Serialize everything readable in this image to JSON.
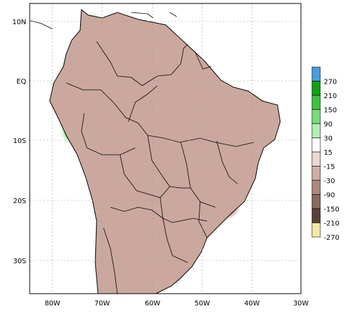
{
  "map": {
    "lat_labels": [
      "10N",
      "EQ",
      "10S",
      "20S",
      "30S"
    ],
    "lon_labels": [
      "80W",
      "70W",
      "60W",
      "50W",
      "40W",
      "30W"
    ]
  },
  "legend": {
    "bins": [
      {
        "label": "270",
        "color": "#4a9de0"
      },
      {
        "label": "210",
        "color": "#12a312"
      },
      {
        "label": "150",
        "color": "#3cc43c"
      },
      {
        "label": "90",
        "color": "#78dc78"
      },
      {
        "label": "30",
        "color": "#b2efb2"
      },
      {
        "label": "15",
        "color": "#ffffff"
      },
      {
        "label": "-15",
        "color": "#ecd8d2"
      },
      {
        "label": "-30",
        "color": "#cfaea4"
      },
      {
        "label": "-90",
        "color": "#ae8a7e"
      },
      {
        "label": "-150",
        "color": "#8a6a5e"
      },
      {
        "label": "-210",
        "color": "#5c4036"
      },
      {
        "label": "-270",
        "color": "#f3e9a6"
      }
    ]
  },
  "colors": {
    "land_base": "#cba89d",
    "wet": "#78dc78",
    "wet_strong": "#3cc43c",
    "dry": "#ae8a7e",
    "dry_strong": "#8a6a5e",
    "neutral": "#ffffff"
  }
}
